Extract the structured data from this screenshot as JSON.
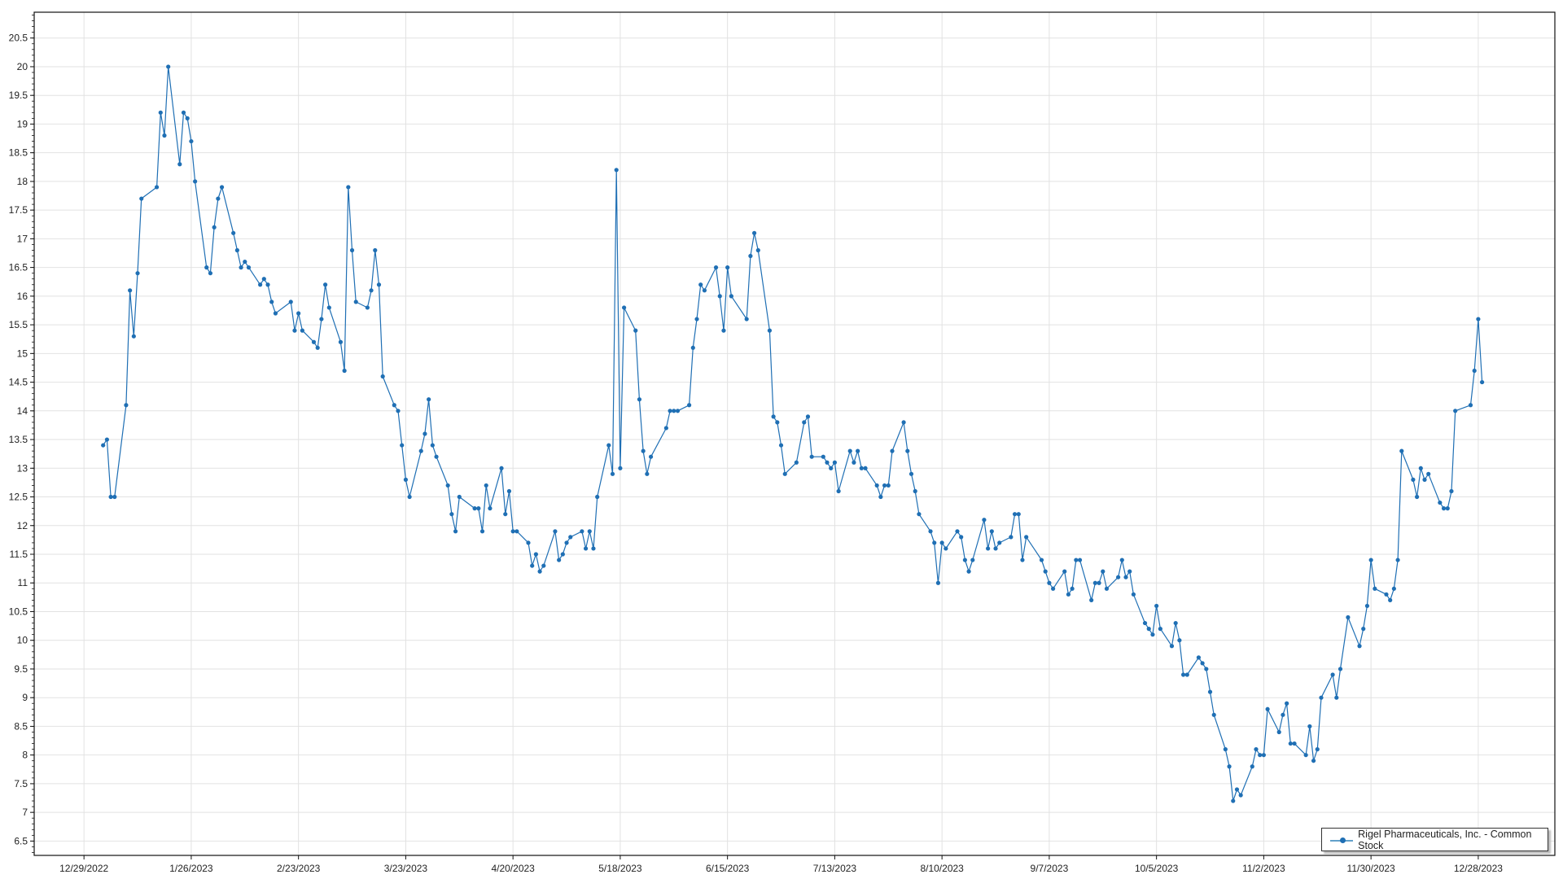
{
  "chart_data": {
    "type": "line",
    "title": "",
    "xlabel": "",
    "ylabel": "",
    "ylim": [
      6.25,
      20.95
    ],
    "xlim": [
      "2022-12-16",
      "2024-01-17"
    ],
    "grid": true,
    "legend_position": "bottom-right",
    "color": "#1f6fb4",
    "y_ticks": [
      "6.5",
      "7",
      "7.5",
      "8",
      "8.5",
      "9",
      "9.5",
      "10",
      "10.5",
      "11",
      "11.5",
      "12",
      "12.5",
      "13",
      "13.5",
      "14",
      "14.5",
      "15",
      "15.5",
      "16",
      "16.5",
      "17",
      "17.5",
      "18",
      "18.5",
      "19",
      "19.5",
      "20",
      "20.5"
    ],
    "x_ticks": [
      {
        "date": "2022-12-29",
        "label": "12/29/2022"
      },
      {
        "date": "2023-01-26",
        "label": "1/26/2023"
      },
      {
        "date": "2023-02-23",
        "label": "2/23/2023"
      },
      {
        "date": "2023-03-23",
        "label": "3/23/2023"
      },
      {
        "date": "2023-04-20",
        "label": "4/20/2023"
      },
      {
        "date": "2023-05-18",
        "label": "5/18/2023"
      },
      {
        "date": "2023-06-15",
        "label": "6/15/2023"
      },
      {
        "date": "2023-07-13",
        "label": "7/13/2023"
      },
      {
        "date": "2023-08-10",
        "label": "8/10/2023"
      },
      {
        "date": "2023-09-07",
        "label": "9/7/2023"
      },
      {
        "date": "2023-10-05",
        "label": "10/5/2023"
      },
      {
        "date": "2023-11-02",
        "label": "11/2/2023"
      },
      {
        "date": "2023-11-30",
        "label": "11/30/2023"
      },
      {
        "date": "2023-12-28",
        "label": "12/28/2023"
      }
    ],
    "series": [
      {
        "name": "Rigel Pharmaceuticals, Inc. - Common Stock",
        "points": [
          [
            "2023-01-03",
            13.4
          ],
          [
            "2023-01-04",
            13.5
          ],
          [
            "2023-01-05",
            12.5
          ],
          [
            "2023-01-06",
            12.5
          ],
          [
            "2023-01-09",
            14.1
          ],
          [
            "2023-01-10",
            16.1
          ],
          [
            "2023-01-11",
            15.3
          ],
          [
            "2023-01-12",
            16.4
          ],
          [
            "2023-01-13",
            17.7
          ],
          [
            "2023-01-17",
            17.9
          ],
          [
            "2023-01-18",
            19.2
          ],
          [
            "2023-01-19",
            18.8
          ],
          [
            "2023-01-20",
            20.0
          ],
          [
            "2023-01-23",
            18.3
          ],
          [
            "2023-01-24",
            19.2
          ],
          [
            "2023-01-25",
            19.1
          ],
          [
            "2023-01-26",
            18.7
          ],
          [
            "2023-01-27",
            18.0
          ],
          [
            "2023-01-30",
            16.5
          ],
          [
            "2023-01-31",
            16.4
          ],
          [
            "2023-02-01",
            17.2
          ],
          [
            "2023-02-02",
            17.7
          ],
          [
            "2023-02-03",
            17.9
          ],
          [
            "2023-02-06",
            17.1
          ],
          [
            "2023-02-07",
            16.8
          ],
          [
            "2023-02-08",
            16.5
          ],
          [
            "2023-02-09",
            16.6
          ],
          [
            "2023-02-10",
            16.5
          ],
          [
            "2023-02-13",
            16.2
          ],
          [
            "2023-02-14",
            16.3
          ],
          [
            "2023-02-15",
            16.2
          ],
          [
            "2023-02-16",
            15.9
          ],
          [
            "2023-02-17",
            15.7
          ],
          [
            "2023-02-21",
            15.9
          ],
          [
            "2023-02-22",
            15.4
          ],
          [
            "2023-02-23",
            15.7
          ],
          [
            "2023-02-24",
            15.4
          ],
          [
            "2023-02-27",
            15.2
          ],
          [
            "2023-02-28",
            15.1
          ],
          [
            "2023-03-01",
            15.6
          ],
          [
            "2023-03-02",
            16.2
          ],
          [
            "2023-03-03",
            15.8
          ],
          [
            "2023-03-06",
            15.2
          ],
          [
            "2023-03-07",
            14.7
          ],
          [
            "2023-03-08",
            17.9
          ],
          [
            "2023-03-09",
            16.8
          ],
          [
            "2023-03-10",
            15.9
          ],
          [
            "2023-03-13",
            15.8
          ],
          [
            "2023-03-14",
            16.1
          ],
          [
            "2023-03-15",
            16.8
          ],
          [
            "2023-03-16",
            16.2
          ],
          [
            "2023-03-17",
            14.6
          ],
          [
            "2023-03-20",
            14.1
          ],
          [
            "2023-03-21",
            14.0
          ],
          [
            "2023-03-22",
            13.4
          ],
          [
            "2023-03-23",
            12.8
          ],
          [
            "2023-03-24",
            12.5
          ],
          [
            "2023-03-27",
            13.3
          ],
          [
            "2023-03-28",
            13.6
          ],
          [
            "2023-03-29",
            14.2
          ],
          [
            "2023-03-30",
            13.4
          ],
          [
            "2023-03-31",
            13.2
          ],
          [
            "2023-04-03",
            12.7
          ],
          [
            "2023-04-04",
            12.2
          ],
          [
            "2023-04-05",
            11.9
          ],
          [
            "2023-04-06",
            12.5
          ],
          [
            "2023-04-10",
            12.3
          ],
          [
            "2023-04-11",
            12.3
          ],
          [
            "2023-04-12",
            11.9
          ],
          [
            "2023-04-13",
            12.7
          ],
          [
            "2023-04-14",
            12.3
          ],
          [
            "2023-04-17",
            13.0
          ],
          [
            "2023-04-18",
            12.2
          ],
          [
            "2023-04-19",
            12.6
          ],
          [
            "2023-04-20",
            11.9
          ],
          [
            "2023-04-21",
            11.9
          ],
          [
            "2023-04-24",
            11.7
          ],
          [
            "2023-04-25",
            11.3
          ],
          [
            "2023-04-26",
            11.5
          ],
          [
            "2023-04-27",
            11.2
          ],
          [
            "2023-04-28",
            11.3
          ],
          [
            "2023-05-01",
            11.9
          ],
          [
            "2023-05-02",
            11.4
          ],
          [
            "2023-05-03",
            11.5
          ],
          [
            "2023-05-04",
            11.7
          ],
          [
            "2023-05-05",
            11.8
          ],
          [
            "2023-05-08",
            11.9
          ],
          [
            "2023-05-09",
            11.6
          ],
          [
            "2023-05-10",
            11.9
          ],
          [
            "2023-05-11",
            11.6
          ],
          [
            "2023-05-12",
            12.5
          ],
          [
            "2023-05-15",
            13.4
          ],
          [
            "2023-05-16",
            12.9
          ],
          [
            "2023-05-17",
            18.2
          ],
          [
            "2023-05-18",
            13.0
          ],
          [
            "2023-05-19",
            15.8
          ],
          [
            "2023-05-22",
            15.4
          ],
          [
            "2023-05-23",
            14.2
          ],
          [
            "2023-05-24",
            13.3
          ],
          [
            "2023-05-25",
            12.9
          ],
          [
            "2023-05-26",
            13.2
          ],
          [
            "2023-05-30",
            13.7
          ],
          [
            "2023-05-31",
            14.0
          ],
          [
            "2023-06-01",
            14.0
          ],
          [
            "2023-06-02",
            14.0
          ],
          [
            "2023-06-05",
            14.1
          ],
          [
            "2023-06-06",
            15.1
          ],
          [
            "2023-06-07",
            15.6
          ],
          [
            "2023-06-08",
            16.2
          ],
          [
            "2023-06-09",
            16.1
          ],
          [
            "2023-06-12",
            16.5
          ],
          [
            "2023-06-13",
            16.0
          ],
          [
            "2023-06-14",
            15.4
          ],
          [
            "2023-06-15",
            16.5
          ],
          [
            "2023-06-16",
            16.0
          ],
          [
            "2023-06-20",
            15.6
          ],
          [
            "2023-06-21",
            16.7
          ],
          [
            "2023-06-22",
            17.1
          ],
          [
            "2023-06-23",
            16.8
          ],
          [
            "2023-06-26",
            15.4
          ],
          [
            "2023-06-27",
            13.9
          ],
          [
            "2023-06-28",
            13.8
          ],
          [
            "2023-06-29",
            13.4
          ],
          [
            "2023-06-30",
            12.9
          ],
          [
            "2023-07-03",
            13.1
          ],
          [
            "2023-07-05",
            13.8
          ],
          [
            "2023-07-06",
            13.9
          ],
          [
            "2023-07-07",
            13.2
          ],
          [
            "2023-07-10",
            13.2
          ],
          [
            "2023-07-11",
            13.1
          ],
          [
            "2023-07-12",
            13.0
          ],
          [
            "2023-07-13",
            13.1
          ],
          [
            "2023-07-14",
            12.6
          ],
          [
            "2023-07-17",
            13.3
          ],
          [
            "2023-07-18",
            13.1
          ],
          [
            "2023-07-19",
            13.3
          ],
          [
            "2023-07-20",
            13.0
          ],
          [
            "2023-07-21",
            13.0
          ],
          [
            "2023-07-24",
            12.7
          ],
          [
            "2023-07-25",
            12.5
          ],
          [
            "2023-07-26",
            12.7
          ],
          [
            "2023-07-27",
            12.7
          ],
          [
            "2023-07-28",
            13.3
          ],
          [
            "2023-07-31",
            13.8
          ],
          [
            "2023-08-01",
            13.3
          ],
          [
            "2023-08-02",
            12.9
          ],
          [
            "2023-08-03",
            12.6
          ],
          [
            "2023-08-04",
            12.2
          ],
          [
            "2023-08-07",
            11.9
          ],
          [
            "2023-08-08",
            11.7
          ],
          [
            "2023-08-09",
            11.0
          ],
          [
            "2023-08-10",
            11.7
          ],
          [
            "2023-08-11",
            11.6
          ],
          [
            "2023-08-14",
            11.9
          ],
          [
            "2023-08-15",
            11.8
          ],
          [
            "2023-08-16",
            11.4
          ],
          [
            "2023-08-17",
            11.2
          ],
          [
            "2023-08-18",
            11.4
          ],
          [
            "2023-08-21",
            12.1
          ],
          [
            "2023-08-22",
            11.6
          ],
          [
            "2023-08-23",
            11.9
          ],
          [
            "2023-08-24",
            11.6
          ],
          [
            "2023-08-25",
            11.7
          ],
          [
            "2023-08-28",
            11.8
          ],
          [
            "2023-08-29",
            12.2
          ],
          [
            "2023-08-30",
            12.2
          ],
          [
            "2023-08-31",
            11.4
          ],
          [
            "2023-09-01",
            11.8
          ],
          [
            "2023-09-05",
            11.4
          ],
          [
            "2023-09-06",
            11.2
          ],
          [
            "2023-09-07",
            11.0
          ],
          [
            "2023-09-08",
            10.9
          ],
          [
            "2023-09-11",
            11.2
          ],
          [
            "2023-09-12",
            10.8
          ],
          [
            "2023-09-13",
            10.9
          ],
          [
            "2023-09-14",
            11.4
          ],
          [
            "2023-09-15",
            11.4
          ],
          [
            "2023-09-18",
            10.7
          ],
          [
            "2023-09-19",
            11.0
          ],
          [
            "2023-09-20",
            11.0
          ],
          [
            "2023-09-21",
            11.2
          ],
          [
            "2023-09-22",
            10.9
          ],
          [
            "2023-09-25",
            11.1
          ],
          [
            "2023-09-26",
            11.4
          ],
          [
            "2023-09-27",
            11.1
          ],
          [
            "2023-09-28",
            11.2
          ],
          [
            "2023-09-29",
            10.8
          ],
          [
            "2023-10-02",
            10.3
          ],
          [
            "2023-10-03",
            10.2
          ],
          [
            "2023-10-04",
            10.1
          ],
          [
            "2023-10-05",
            10.6
          ],
          [
            "2023-10-06",
            10.2
          ],
          [
            "2023-10-09",
            9.9
          ],
          [
            "2023-10-10",
            10.3
          ],
          [
            "2023-10-11",
            10.0
          ],
          [
            "2023-10-12",
            9.4
          ],
          [
            "2023-10-13",
            9.4
          ],
          [
            "2023-10-16",
            9.7
          ],
          [
            "2023-10-17",
            9.6
          ],
          [
            "2023-10-18",
            9.5
          ],
          [
            "2023-10-19",
            9.1
          ],
          [
            "2023-10-20",
            8.7
          ],
          [
            "2023-10-23",
            8.1
          ],
          [
            "2023-10-24",
            7.8
          ],
          [
            "2023-10-25",
            7.2
          ],
          [
            "2023-10-26",
            7.4
          ],
          [
            "2023-10-27",
            7.3
          ],
          [
            "2023-10-30",
            7.8
          ],
          [
            "2023-10-31",
            8.1
          ],
          [
            "2023-11-01",
            8.0
          ],
          [
            "2023-11-02",
            8.0
          ],
          [
            "2023-11-03",
            8.8
          ],
          [
            "2023-11-06",
            8.4
          ],
          [
            "2023-11-07",
            8.7
          ],
          [
            "2023-11-08",
            8.9
          ],
          [
            "2023-11-09",
            8.2
          ],
          [
            "2023-11-10",
            8.2
          ],
          [
            "2023-11-13",
            8.0
          ],
          [
            "2023-11-14",
            8.5
          ],
          [
            "2023-11-15",
            7.9
          ],
          [
            "2023-11-16",
            8.1
          ],
          [
            "2023-11-17",
            9.0
          ],
          [
            "2023-11-20",
            9.4
          ],
          [
            "2023-11-21",
            9.0
          ],
          [
            "2023-11-22",
            9.5
          ],
          [
            "2023-11-24",
            10.4
          ],
          [
            "2023-11-27",
            9.9
          ],
          [
            "2023-11-28",
            10.2
          ],
          [
            "2023-11-29",
            10.6
          ],
          [
            "2023-11-30",
            11.4
          ],
          [
            "2023-12-01",
            10.9
          ],
          [
            "2023-12-04",
            10.8
          ],
          [
            "2023-12-05",
            10.7
          ],
          [
            "2023-12-06",
            10.9
          ],
          [
            "2023-12-07",
            11.4
          ],
          [
            "2023-12-08",
            13.3
          ],
          [
            "2023-12-11",
            12.8
          ],
          [
            "2023-12-12",
            12.5
          ],
          [
            "2023-12-13",
            13.0
          ],
          [
            "2023-12-14",
            12.8
          ],
          [
            "2023-12-15",
            12.9
          ],
          [
            "2023-12-18",
            12.4
          ],
          [
            "2023-12-19",
            12.3
          ],
          [
            "2023-12-20",
            12.3
          ],
          [
            "2023-12-21",
            12.6
          ],
          [
            "2023-12-22",
            14.0
          ],
          [
            "2023-12-26",
            14.1
          ],
          [
            "2023-12-27",
            14.7
          ],
          [
            "2023-12-28",
            15.6
          ],
          [
            "2023-12-29",
            14.5
          ]
        ]
      }
    ]
  },
  "legend": {
    "label": "Rigel Pharmaceuticals, Inc. - Common Stock"
  }
}
